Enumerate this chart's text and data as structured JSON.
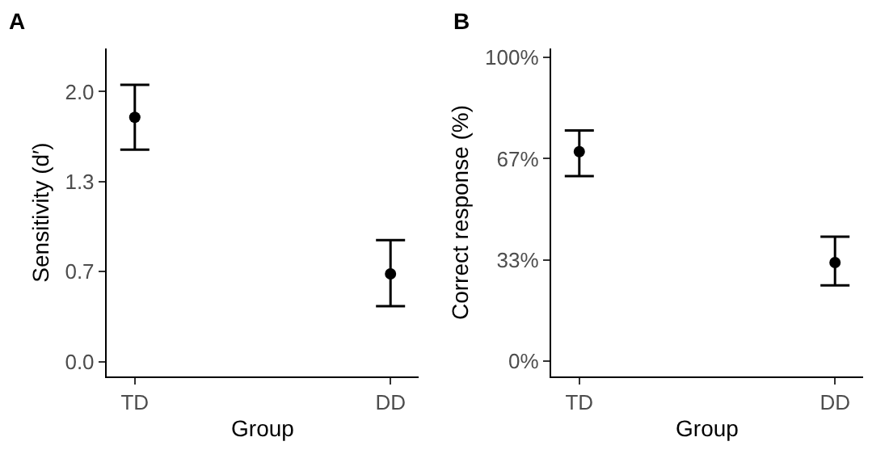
{
  "chart_data": [
    {
      "type": "scatter",
      "title": "A",
      "xlabel": "Group",
      "ylabel": "Sensitivity (d′)",
      "categories": [
        "TD",
        "DD"
      ],
      "values": [
        1.81,
        0.65
      ],
      "errors": [
        [
          1.57,
          2.05
        ],
        [
          0.41,
          0.9
        ]
      ],
      "color": "#000000",
      "marker": "circle",
      "ylim": [
        -0.11,
        2.32
      ],
      "yticks": [
        {
          "value": 0,
          "label": "0.0"
        },
        {
          "value": 0.667,
          "label": "0.7"
        },
        {
          "value": 1.333,
          "label": "1.3"
        },
        {
          "value": 2,
          "label": "2.0"
        }
      ],
      "grid": false,
      "legend": false
    },
    {
      "type": "scatter",
      "title": "B",
      "xlabel": "Group",
      "ylabel": "Correct response (%)",
      "categories": [
        "TD",
        "DD"
      ],
      "values": [
        69,
        32.5
      ],
      "errors": [
        [
          61,
          76
        ],
        [
          25,
          41
        ]
      ],
      "color": "#000000",
      "marker": "circle",
      "ylim": [
        -5,
        103
      ],
      "yticks": [
        {
          "value": 0,
          "label": "0%"
        },
        {
          "value": 33.3,
          "label": "33%"
        },
        {
          "value": 66.7,
          "label": "67%"
        },
        {
          "value": 100,
          "label": "100%"
        }
      ],
      "grid": false,
      "legend": false
    }
  ]
}
